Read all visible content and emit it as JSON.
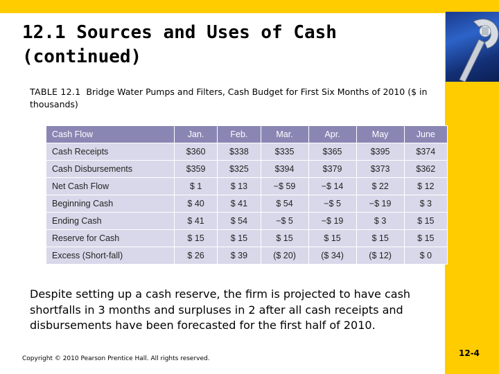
{
  "slide": {
    "title_line1": "12.1  Sources and Uses of Cash",
    "title_line2": "(continued)",
    "table_label": "TABLE 12.1",
    "table_caption": "Bridge Water Pumps and Filters, Cash Budget for First Six Months of 2010 ($ in thousands)",
    "description": "Despite setting up a cash reserve, the firm is projected to have cash shortfalls in  3 months and surpluses in 2 after all cash receipts and disbursements  have been forecasted for the first half of 2010.",
    "copyright": "Copyright © 2010 Pearson Prentice Hall. All rights reserved.",
    "slide_number": "12-4"
  },
  "table": {
    "headers": [
      "Cash Flow",
      "Jan.",
      "Feb.",
      "Mar.",
      "Apr.",
      "May",
      "June"
    ],
    "rows": [
      [
        "Cash Receipts",
        "$360",
        "$338",
        "$335",
        "$365",
        "$395",
        "$374"
      ],
      [
        "Cash Disbursements",
        "$359",
        "$325",
        "$394",
        "$379",
        "$373",
        "$362"
      ],
      [
        "Net Cash Flow",
        "$   1",
        "$  13",
        "−$  59",
        "−$  14",
        "$  22",
        "$  12"
      ],
      [
        "Beginning Cash",
        "$  40",
        "$  41",
        "$  54",
        "−$   5",
        "−$  19",
        "$   3"
      ],
      [
        "Ending Cash",
        "$  41",
        "$  54",
        "−$   5",
        "−$  19",
        "$   3",
        "$  15"
      ],
      [
        "Reserve for Cash",
        "$  15",
        "$  15",
        "$  15",
        "$  15",
        "$  15",
        "$  15"
      ],
      [
        "Excess (Short-fall)",
        "$  26",
        "$  39",
        "($  20)",
        "($  34)",
        "($  12)",
        "$   0"
      ]
    ]
  },
  "colors": {
    "accent_yellow": "#ffcc00",
    "table_header": "#8a86b4",
    "table_cell": "#d9d8ea"
  }
}
